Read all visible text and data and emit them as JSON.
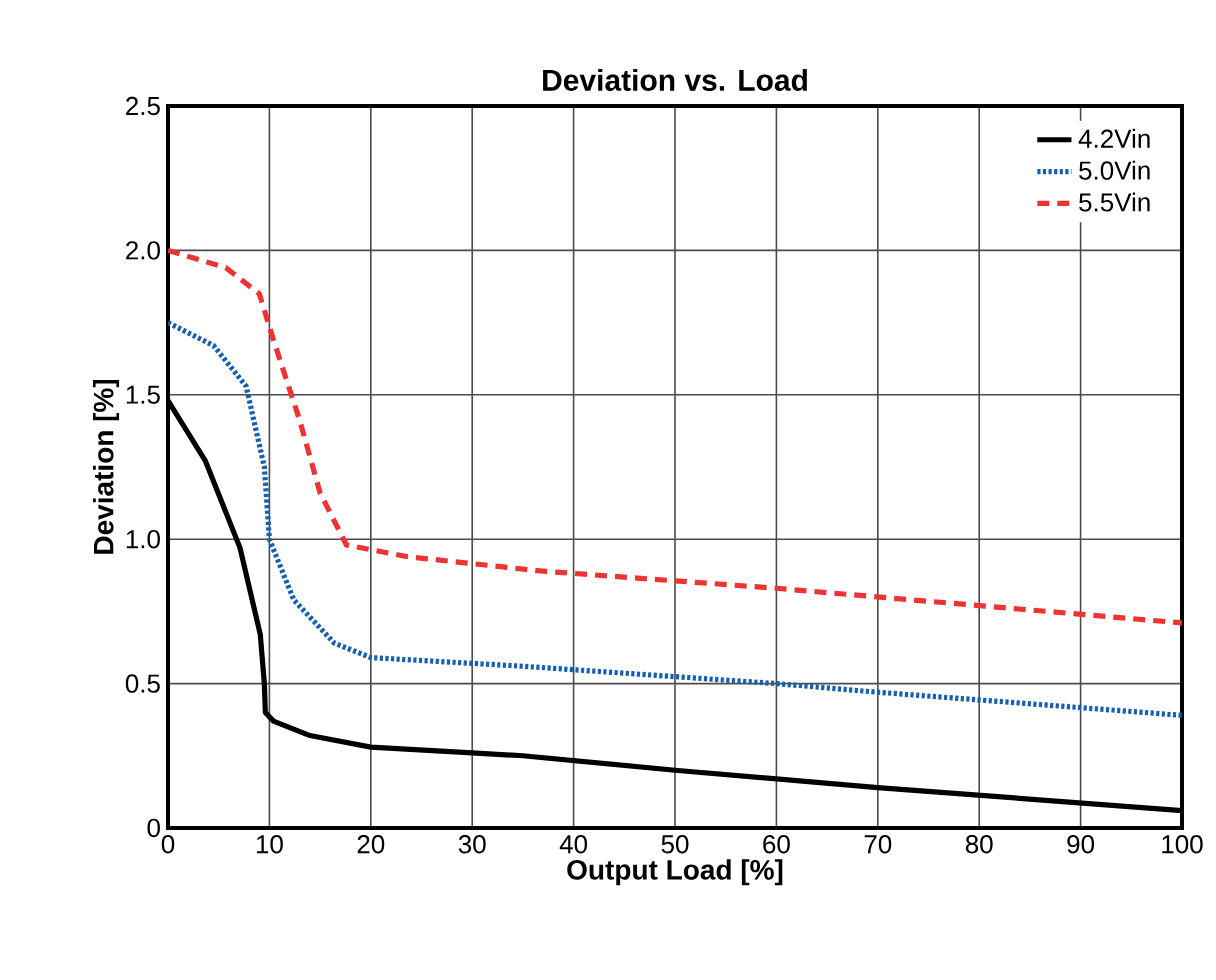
{
  "chart_data": {
    "type": "line",
    "title": "Deviation vs. Load",
    "xlabel": "Output Load [%]",
    "ylabel": "Deviation [%]",
    "xlim": [
      0,
      100
    ],
    "ylim": [
      0,
      2.5
    ],
    "xticks": [
      0,
      10,
      20,
      30,
      40,
      50,
      60,
      70,
      80,
      90,
      100
    ],
    "yticks": [
      {
        "value": 0,
        "label": "0"
      },
      {
        "value": 0.5,
        "label": "0.5"
      },
      {
        "value": 1,
        "label": "1.0"
      },
      {
        "value": 1.5,
        "label": "1.5"
      },
      {
        "value": 2,
        "label": "2.0"
      },
      {
        "value": 2.5,
        "label": "2.5"
      }
    ],
    "grid": true,
    "legend": "top right",
    "series": [
      {
        "name": "4.2Vin",
        "color": "#000000",
        "line_style": "solid",
        "x": [
          0,
          3.7,
          7.1,
          9.1,
          9.5,
          9.6,
          10.4,
          14,
          20,
          30,
          35,
          50,
          70,
          100
        ],
        "values": [
          1.48,
          1.27,
          0.97,
          0.67,
          0.5,
          0.4,
          0.37,
          0.32,
          0.28,
          0.26,
          0.25,
          0.2,
          0.14,
          0.06
        ]
      },
      {
        "name": "5.0Vin",
        "color": "#1560b0",
        "line_style": "dotted",
        "x": [
          0,
          4.5,
          7.7,
          9.5,
          10,
          12.4,
          16.4,
          20,
          30,
          35,
          60,
          70,
          100
        ],
        "values": [
          1.75,
          1.67,
          1.53,
          1.25,
          1.0,
          0.79,
          0.64,
          0.59,
          0.57,
          0.56,
          0.5,
          0.47,
          0.39
        ]
      },
      {
        "name": "5.5Vin",
        "color": "#ee3333",
        "line_style": "dashed",
        "x": [
          0,
          5.7,
          9,
          10.4,
          13,
          15,
          17.6,
          23.5,
          36.7,
          60,
          80,
          100
        ],
        "values": [
          2.0,
          1.94,
          1.85,
          1.69,
          1.41,
          1.16,
          0.98,
          0.94,
          0.89,
          0.83,
          0.77,
          0.71
        ]
      }
    ]
  }
}
